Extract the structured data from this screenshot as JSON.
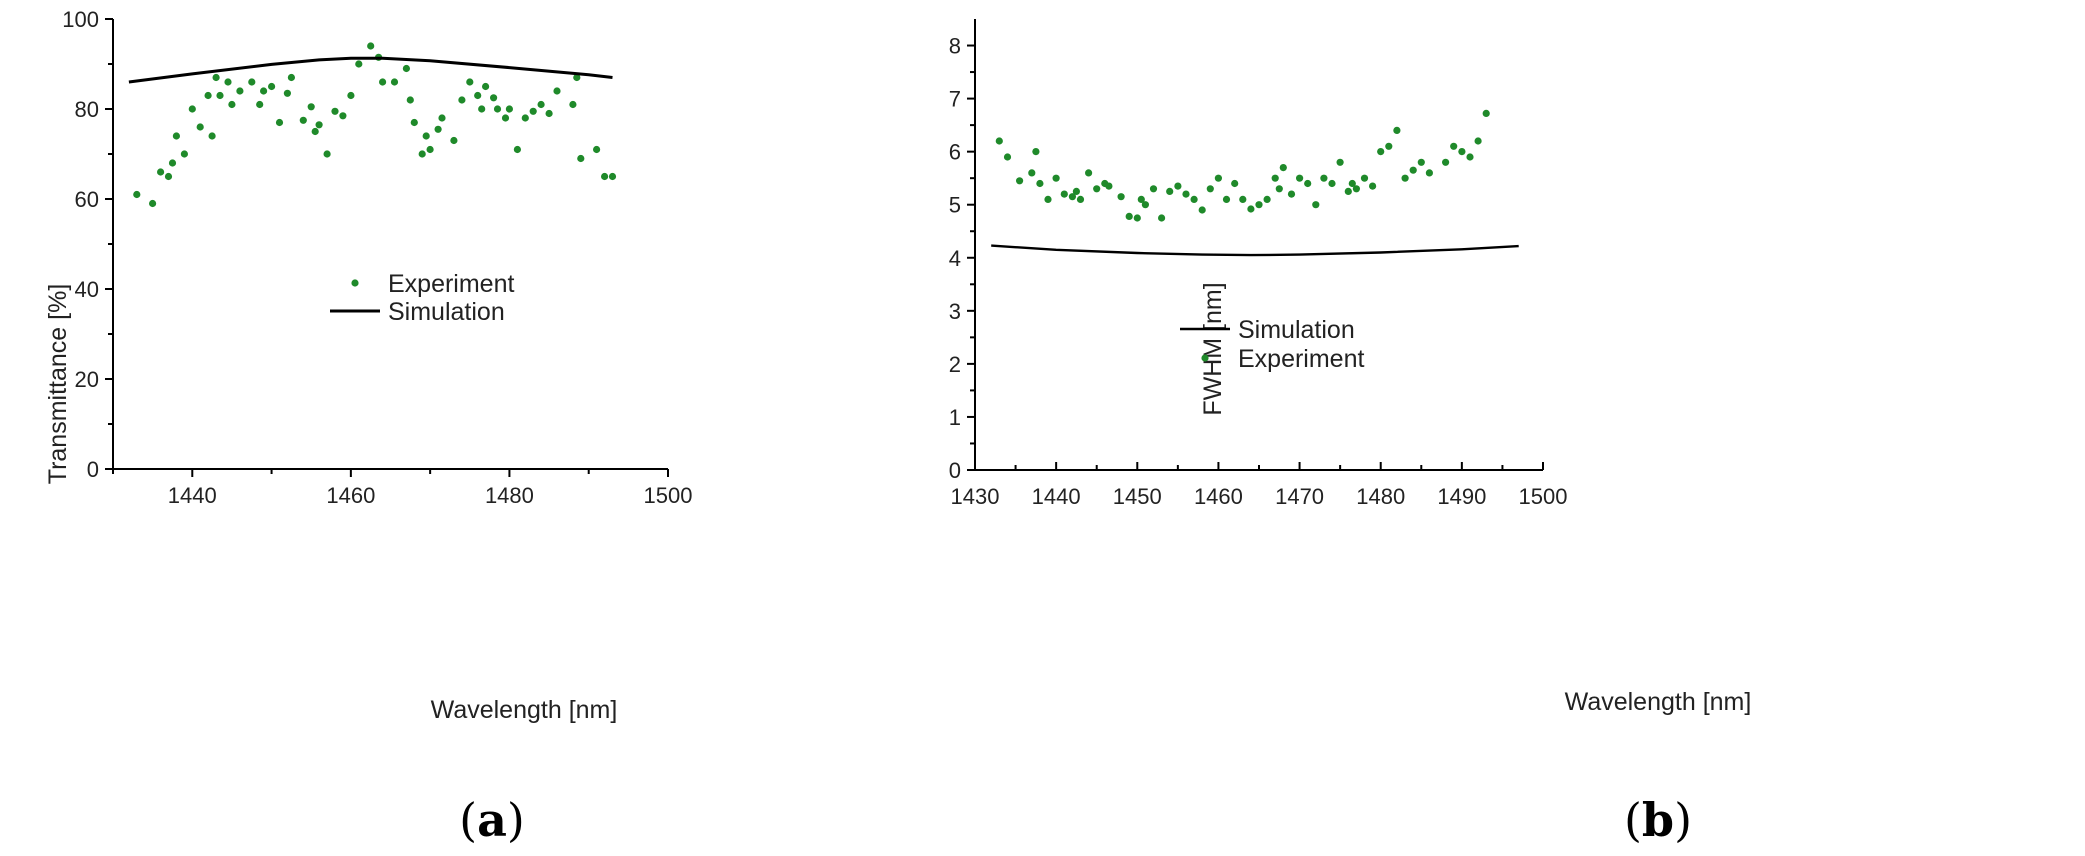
{
  "chart_data": [
    {
      "type": "scatter",
      "panel_label": {
        "open": "(",
        "letter": "a",
        "close": ")"
      },
      "xlabel": "Wavelength [nm]",
      "ylabel": "Transmittance [%]",
      "xlim": [
        1430,
        1500
      ],
      "ylim": [
        0,
        100
      ],
      "xticks": [
        1440,
        1460,
        1480,
        1500
      ],
      "yticks": [
        0,
        20,
        40,
        60,
        80,
        100
      ],
      "legend": {
        "placement": "center",
        "entries": [
          "Experiment",
          "Simulation"
        ]
      },
      "series": [
        {
          "name": "Experiment",
          "kind": "scatter",
          "color": "#1f8a2a",
          "x": [
            1433,
            1435,
            1436,
            1437,
            1437.5,
            1438,
            1439,
            1440,
            1441,
            1442,
            1442.5,
            1443,
            1443.5,
            1444.5,
            1445,
            1446,
            1447.5,
            1448.5,
            1449,
            1450,
            1451,
            1452,
            1452.5,
            1454,
            1455,
            1455.5,
            1456,
            1457,
            1458,
            1459,
            1460,
            1461,
            1462.5,
            1463.5,
            1464,
            1465.5,
            1467,
            1467.5,
            1468,
            1469,
            1469.5,
            1470,
            1471,
            1471.5,
            1473,
            1474,
            1475,
            1476,
            1476.5,
            1477,
            1478,
            1478.5,
            1479.5,
            1480,
            1481,
            1482,
            1483,
            1484,
            1485,
            1486,
            1488,
            1488.5,
            1489,
            1491,
            1492,
            1493
          ],
          "y": [
            61,
            59,
            66,
            65,
            68,
            74,
            70,
            80,
            76,
            83,
            74,
            87,
            83,
            86,
            81,
            84,
            86,
            81,
            84,
            85,
            77,
            83.5,
            87,
            77.5,
            80.5,
            75,
            76.5,
            70,
            79.5,
            78.5,
            83,
            90,
            94,
            91.5,
            86,
            86,
            89,
            82,
            77,
            70,
            74,
            71,
            75.5,
            78,
            73,
            82,
            86,
            83,
            80,
            85,
            82.5,
            80,
            78,
            80,
            71,
            78,
            79.5,
            81,
            79,
            84,
            81,
            87,
            69,
            71,
            65,
            65
          ]
        },
        {
          "name": "Simulation",
          "kind": "line",
          "color": "#000000",
          "x": [
            1432,
            1440,
            1450,
            1456,
            1460,
            1464,
            1470,
            1480,
            1490,
            1493
          ],
          "y": [
            86,
            87.8,
            89.9,
            90.9,
            91.3,
            91.3,
            90.7,
            89.2,
            87.6,
            87
          ]
        }
      ]
    },
    {
      "type": "scatter",
      "panel_label": {
        "open": "(",
        "letter": "b",
        "close": ")"
      },
      "xlabel": "Wavelength [nm]",
      "ylabel": "FWHM [nm]",
      "xlim": [
        1430,
        1500
      ],
      "ylim": [
        0,
        8.5
      ],
      "xticks": [
        1430,
        1440,
        1450,
        1460,
        1470,
        1480,
        1490,
        1500
      ],
      "yticks": [
        0,
        1,
        2,
        3,
        4,
        5,
        6,
        7,
        8
      ],
      "legend": {
        "placement": "center",
        "entries": [
          "Simulation",
          "Experiment"
        ]
      },
      "series": [
        {
          "name": "Simulation",
          "kind": "line",
          "color": "#000000",
          "x": [
            1432,
            1440,
            1450,
            1458,
            1464,
            1470,
            1480,
            1490,
            1497
          ],
          "y": [
            4.23,
            4.15,
            4.09,
            4.06,
            4.05,
            4.06,
            4.1,
            4.16,
            4.22
          ]
        },
        {
          "name": "Experiment",
          "kind": "scatter",
          "color": "#1f8a2a",
          "x": [
            1433,
            1434,
            1435.5,
            1437,
            1437.5,
            1438,
            1439,
            1440,
            1441,
            1442,
            1442.5,
            1443,
            1444,
            1445,
            1446,
            1446.5,
            1448,
            1449,
            1450,
            1450.5,
            1451,
            1452,
            1453,
            1454,
            1455,
            1456,
            1457,
            1458,
            1459,
            1460,
            1461,
            1462,
            1463,
            1464,
            1465,
            1466,
            1467,
            1467.5,
            1468,
            1469,
            1470,
            1471,
            1472,
            1473,
            1474,
            1475,
            1476,
            1476.5,
            1477,
            1478,
            1479,
            1480,
            1481,
            1482,
            1483,
            1484,
            1485,
            1486,
            1488,
            1489,
            1490,
            1491,
            1492,
            1493
          ],
          "y": [
            6.2,
            5.9,
            5.45,
            5.6,
            6.0,
            5.4,
            5.1,
            5.5,
            5.2,
            5.15,
            5.25,
            5.1,
            5.6,
            5.3,
            5.4,
            5.35,
            5.15,
            4.78,
            4.75,
            5.1,
            5.0,
            5.3,
            4.75,
            5.25,
            5.35,
            5.2,
            5.1,
            4.9,
            5.3,
            5.5,
            5.1,
            5.4,
            5.1,
            4.92,
            5.0,
            5.1,
            5.5,
            5.3,
            5.7,
            5.2,
            5.5,
            5.4,
            5.0,
            5.5,
            5.4,
            5.8,
            5.25,
            5.4,
            5.3,
            5.5,
            5.35,
            6.0,
            6.1,
            6.4,
            5.5,
            5.65,
            5.8,
            5.6,
            5.8,
            6.1,
            6.0,
            5.9,
            6.2,
            6.72
          ]
        }
      ]
    }
  ]
}
